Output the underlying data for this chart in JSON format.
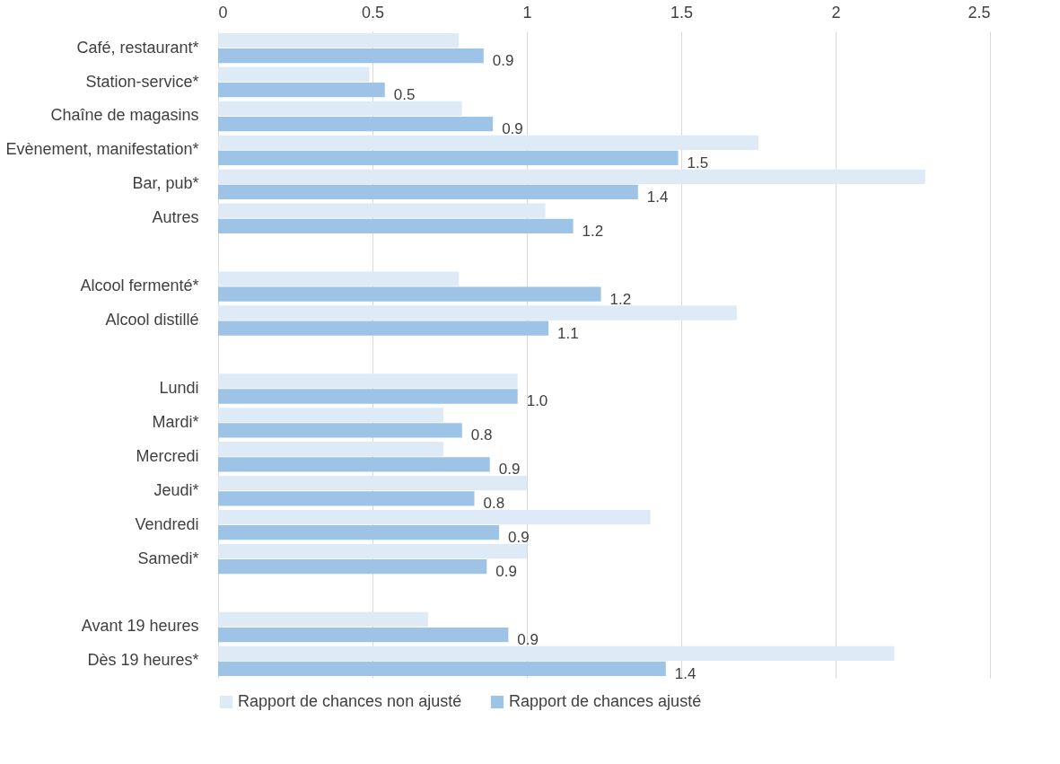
{
  "chart_data": {
    "type": "bar",
    "orientation": "horizontal",
    "categories": [
      "Café, restaurant*",
      "Station-service*",
      "Chaîne de magasins",
      "Evènement, manifestation*",
      "Bar, pub*",
      "Autres",
      null,
      "Alcool fermenté*",
      "Alcool distillé",
      null,
      "Lundi",
      "Mardi*",
      "Mercredi",
      "Jeudi*",
      "Vendredi",
      "Samedi*",
      null,
      "Avant 19 heures",
      "Dès 19 heures*"
    ],
    "series": [
      {
        "name": "Rapport de chances non ajusté",
        "color": "#deebf7",
        "values": [
          0.78,
          0.49,
          0.79,
          1.75,
          2.29,
          1.06,
          null,
          0.78,
          1.68,
          null,
          0.97,
          0.73,
          0.73,
          1.0,
          1.4,
          1.0,
          null,
          0.68,
          2.19
        ]
      },
      {
        "name": "Rapport de chances ajusté",
        "color": "#9dc3e6",
        "values": [
          0.86,
          0.54,
          0.89,
          1.49,
          1.36,
          1.15,
          null,
          1.24,
          1.07,
          null,
          0.97,
          0.79,
          0.88,
          0.83,
          0.91,
          0.87,
          null,
          0.94,
          1.45
        ],
        "value_labels": [
          "0.9",
          "0.5",
          "0.9",
          "1.5",
          "1.4",
          "1.2",
          null,
          "1.2",
          "1.1",
          null,
          "1.0",
          "0.8",
          "0.9",
          "0.8",
          "0.9",
          "0.9",
          null,
          "0.9",
          "1.4"
        ]
      }
    ],
    "xlim": [
      0,
      2.5
    ],
    "xticks": [
      0,
      0.5,
      1,
      1.5,
      2,
      2.5
    ],
    "grid": "x",
    "legend": "bottom"
  }
}
